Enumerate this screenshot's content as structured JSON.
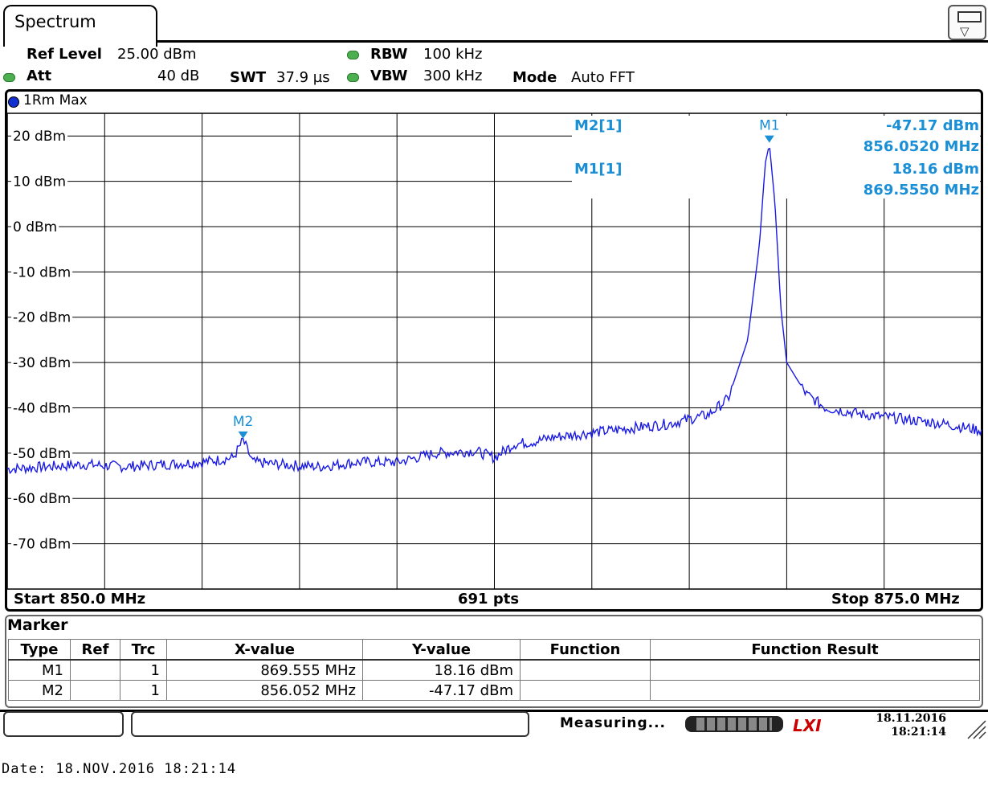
{
  "tab": {
    "title": "Spectrum"
  },
  "settings": {
    "ref_level_label": "Ref Level",
    "ref_level_value": "25.00 dBm",
    "att_label": "Att",
    "att_value": "40 dB",
    "swt_label": "SWT",
    "swt_value": "37.9 µs",
    "rbw_label": "RBW",
    "rbw_value": "100 kHz",
    "vbw_label": "VBW",
    "vbw_value": "300 kHz",
    "mode_label": "Mode",
    "mode_value": "Auto FFT"
  },
  "trace": {
    "label": "1Rm Max",
    "color": "#1a1ae6"
  },
  "chart_data": {
    "type": "line",
    "xlim": [
      850.0,
      875.0
    ],
    "ylim": [
      -80,
      25
    ],
    "ytick_values": [
      20,
      10,
      0,
      -10,
      -20,
      -30,
      -40,
      -50,
      -60,
      -70
    ],
    "ytick_labels": [
      "20 dBm",
      "10 dBm",
      "0 dBm",
      "-10 dBm",
      "-20 dBm",
      "-30 dBm",
      "-40 dBm",
      "-50 dBm",
      "-60 dBm",
      "-70 dBm"
    ],
    "x_divisions": 10,
    "grid": true,
    "series": [
      {
        "x": [
          850.0,
          851.0,
          852.0,
          853.0,
          854.0,
          855.0,
          855.8,
          856.052,
          856.3,
          857.0,
          858.0,
          859.0,
          860.0,
          861.0,
          862.0,
          862.5,
          863.0,
          863.5,
          864.0,
          865.0,
          866.0,
          867.0,
          868.0,
          868.5,
          869.0,
          869.3,
          869.45,
          869.555,
          869.7,
          869.85,
          870.0,
          870.5,
          871.0,
          872.0,
          873.0,
          874.0,
          875.0
        ],
        "y": [
          -53.5,
          -53,
          -52.5,
          -53,
          -52.5,
          -52,
          -51,
          -47.17,
          -52,
          -52.5,
          -53,
          -52,
          -52,
          -50,
          -49.5,
          -51,
          -48,
          -47.5,
          -46.5,
          -45.5,
          -44.5,
          -43.5,
          -41.5,
          -38,
          -25,
          -4,
          14,
          18.16,
          5,
          -18,
          -30,
          -37,
          -40,
          -41.5,
          -42.5,
          -43.5,
          -45
        ]
      }
    ],
    "markers": [
      {
        "name": "M1",
        "x": 869.555,
        "y": 18.16
      },
      {
        "name": "M2",
        "x": 856.052,
        "y": -47.17
      }
    ],
    "marker_readout": [
      {
        "label": "M2[1]",
        "level": "-47.17 dBm",
        "freq": "856.0520 MHz"
      },
      {
        "label": "M1[1]",
        "level": "18.16 dBm",
        "freq": "869.5550 MHz"
      }
    ]
  },
  "axis_footer": {
    "start": "Start 850.0 MHz",
    "points": "691 pts",
    "stop": "Stop 875.0 MHz"
  },
  "marker_table": {
    "title": "Marker",
    "headers": [
      "Type",
      "Ref",
      "Trc",
      "X-value",
      "Y-value",
      "Function",
      "Function Result"
    ],
    "rows": [
      [
        "M1",
        "",
        "1",
        "869.555 MHz",
        "18.16 dBm",
        "",
        ""
      ],
      [
        "M2",
        "",
        "1",
        "856.052 MHz",
        "-47.17 dBm",
        "",
        ""
      ]
    ]
  },
  "status": {
    "measuring": "Measuring...",
    "lxi": "LXI",
    "date": "18.11.2016",
    "time": "18:21:14"
  },
  "caption": "Date: 18.NOV.2016  18:21:14"
}
